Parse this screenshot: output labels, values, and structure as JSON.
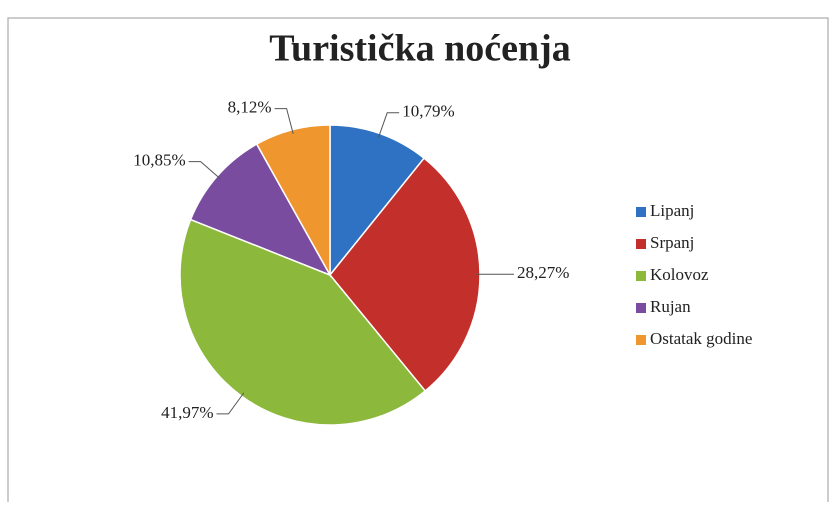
{
  "chart_data": {
    "type": "pie",
    "title": "Turistička noćenja",
    "categories": [
      "Lipanj",
      "Srpanj",
      "Kolovoz",
      "Rujan",
      "Ostatak godine"
    ],
    "values": [
      10.79,
      28.27,
      41.97,
      10.85,
      8.12
    ],
    "value_labels": [
      "10,79%",
      "28,27%",
      "41,97%",
      "10,85%",
      "8,12%"
    ],
    "colors": [
      "#2f72c4",
      "#c3302b",
      "#8cb83c",
      "#7a4c9f",
      "#f0962e"
    ],
    "legend": "right"
  }
}
